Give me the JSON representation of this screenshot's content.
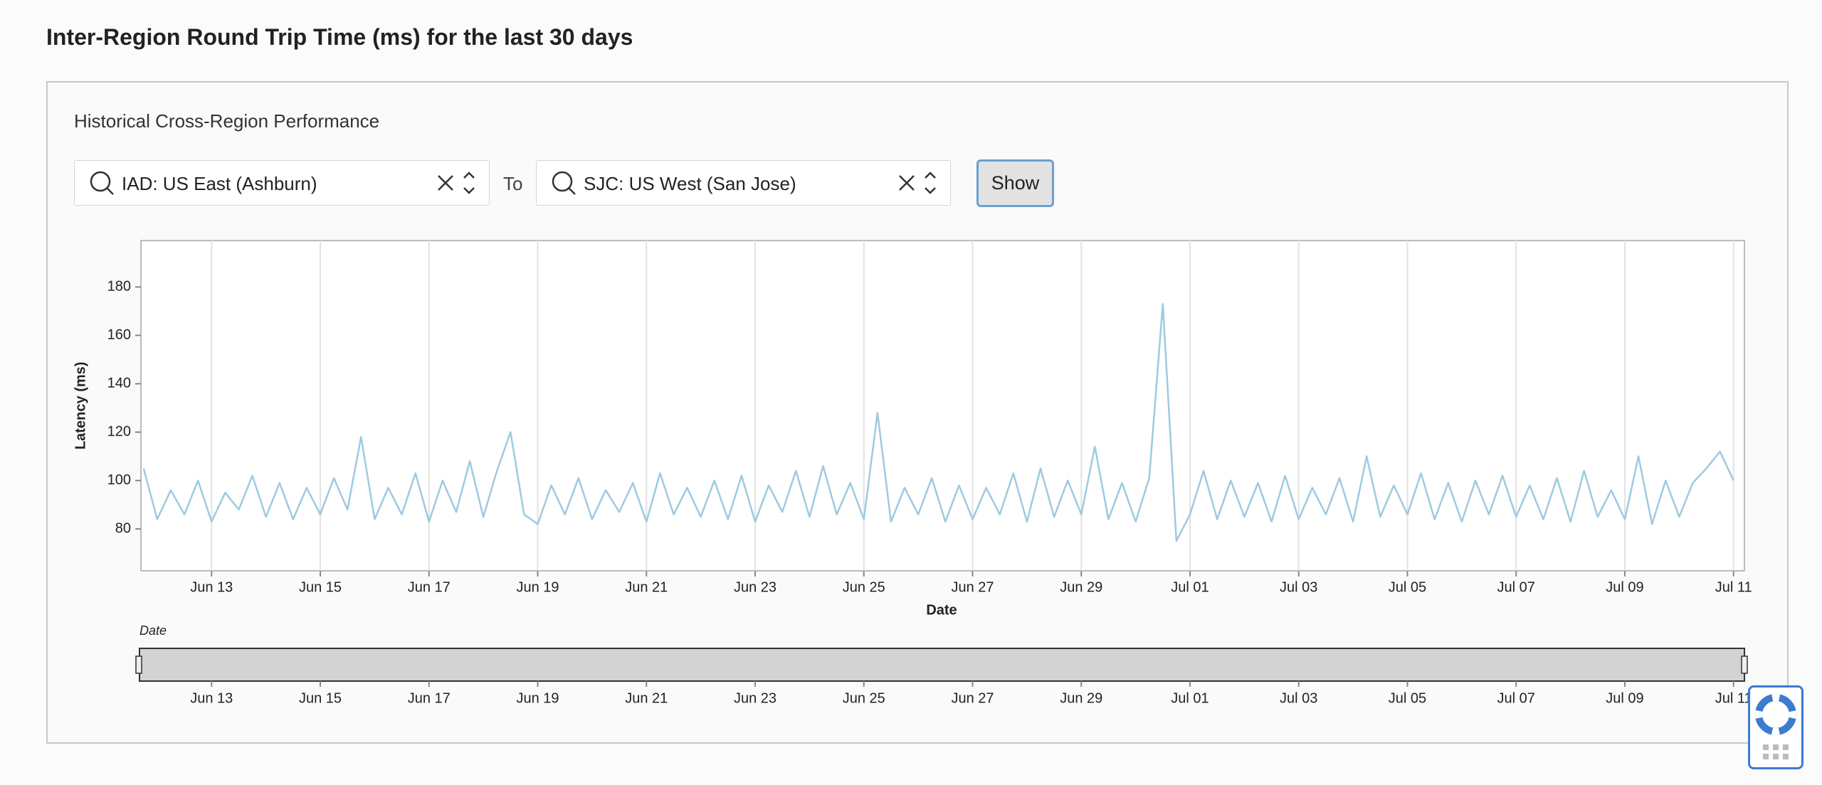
{
  "header": {
    "title": "Inter-Region Round Trip Time (ms) for the last 30 days"
  },
  "panel": {
    "subtitle": "Historical Cross-Region Performance",
    "from": "IAD: US East (Ashburn)",
    "to_label": "To",
    "to": "SJC: US West (San Jose)",
    "button": "Show"
  },
  "chart_data": {
    "type": "line",
    "xlabel": "Date",
    "ylabel": "Latency (ms)",
    "brush_label": "Date",
    "xlim": [
      11.7,
      41.2
    ],
    "xticks": [
      {
        "value": 13,
        "label": "Jun 13"
      },
      {
        "value": 15,
        "label": "Jun 15"
      },
      {
        "value": 17,
        "label": "Jun 17"
      },
      {
        "value": 19,
        "label": "Jun 19"
      },
      {
        "value": 21,
        "label": "Jun 21"
      },
      {
        "value": 23,
        "label": "Jun 23"
      },
      {
        "value": 25,
        "label": "Jun 25"
      },
      {
        "value": 27,
        "label": "Jun 27"
      },
      {
        "value": 29,
        "label": "Jun 29"
      },
      {
        "value": 31,
        "label": "Jul 01"
      },
      {
        "value": 33,
        "label": "Jul 03"
      },
      {
        "value": 35,
        "label": "Jul 05"
      },
      {
        "value": 37,
        "label": "Jul 07"
      },
      {
        "value": 39,
        "label": "Jul 09"
      },
      {
        "value": 41,
        "label": "Jul 11"
      }
    ],
    "ylim": [
      62.7,
      199.2
    ],
    "yticks": [
      80,
      100,
      120,
      140,
      160,
      180
    ],
    "grid": true,
    "x": [
      11.75,
      12,
      12.25,
      12.5,
      12.75,
      13,
      13.25,
      13.5,
      13.75,
      14,
      14.25,
      14.5,
      14.75,
      15,
      15.25,
      15.5,
      15.75,
      16,
      16.25,
      16.5,
      16.75,
      17,
      17.25,
      17.5,
      17.75,
      18,
      18.25,
      18.5,
      18.75,
      19,
      19.25,
      19.5,
      19.75,
      20,
      20.25,
      20.5,
      20.75,
      21,
      21.25,
      21.5,
      21.75,
      22,
      22.25,
      22.5,
      22.75,
      23,
      23.25,
      23.5,
      23.75,
      24,
      24.25,
      24.5,
      24.75,
      25,
      25.25,
      25.5,
      25.75,
      26,
      26.25,
      26.5,
      26.75,
      27,
      27.25,
      27.5,
      27.75,
      28,
      28.25,
      28.5,
      28.75,
      29,
      29.25,
      29.5,
      29.75,
      30,
      30.25,
      30.5,
      30.75,
      31,
      31.25,
      31.5,
      31.75,
      32,
      32.25,
      32.5,
      32.75,
      33,
      33.25,
      33.5,
      33.75,
      34,
      34.25,
      34.5,
      34.75,
      35,
      35.25,
      35.5,
      35.75,
      36,
      36.25,
      36.5,
      36.75,
      37,
      37.25,
      37.5,
      37.75,
      38,
      38.25,
      38.5,
      38.75,
      39,
      39.25,
      39.5,
      39.75,
      40,
      40.25,
      40.5,
      40.75,
      41
    ],
    "series": [
      {
        "color": "#9ecae1",
        "values": [
          105,
          84,
          96,
          86,
          100,
          83,
          95,
          88,
          102,
          85,
          99,
          84,
          97,
          86,
          101,
          88,
          118,
          84,
          97,
          86,
          103,
          83,
          100,
          87,
          108,
          85,
          104,
          120,
          86,
          82,
          98,
          86,
          101,
          84,
          96,
          87,
          99,
          83,
          103,
          86,
          97,
          85,
          100,
          84,
          102,
          83,
          98,
          87,
          104,
          85,
          106,
          86,
          99,
          84,
          128,
          83,
          97,
          86,
          101,
          83,
          98,
          84,
          97,
          86,
          103,
          83,
          105,
          85,
          100,
          86,
          114,
          84,
          99,
          83,
          101,
          173,
          75,
          86,
          104,
          84,
          100,
          85,
          99,
          83,
          102,
          84,
          97,
          86,
          101,
          83,
          110,
          85,
          98,
          86,
          103,
          84,
          99,
          83,
          100,
          86,
          102,
          85,
          98,
          84,
          101,
          83,
          104,
          85,
          96,
          84,
          110,
          82,
          100,
          85,
          99,
          105,
          112,
          100
        ]
      }
    ]
  }
}
